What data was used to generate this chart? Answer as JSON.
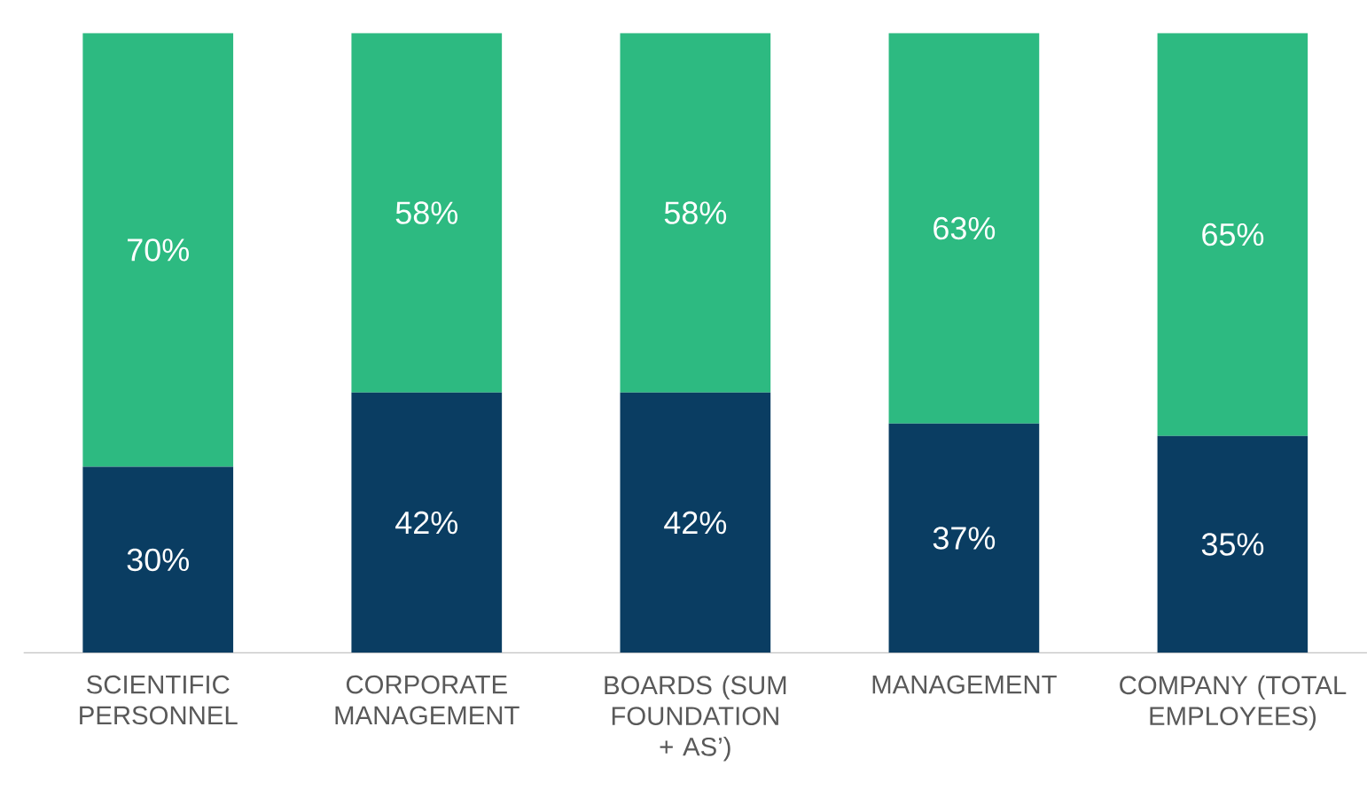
{
  "chart_data": {
    "type": "bar",
    "stacked": true,
    "categories": [
      "SCIENTIFIC PERSONNEL",
      "CORPORATE MANAGEMENT",
      "BOARDS (SUM FOUNDATION + AS’)",
      "MANAGEMENT",
      "COMPANY (TOTAL EMPLOYEES)"
    ],
    "tick_labels": "x",
    "series": [
      {
        "color": "#0a3d62",
        "values": [
          30,
          42,
          42,
          37,
          35
        ],
        "value_labels": [
          "30%",
          "42%",
          "42%",
          "37%",
          "35%"
        ]
      },
      {
        "color": "#2dba81",
        "values": [
          70,
          58,
          58,
          63,
          65
        ],
        "value_labels": [
          "70%",
          "58%",
          "58%",
          "63%",
          "65%"
        ]
      }
    ]
  }
}
